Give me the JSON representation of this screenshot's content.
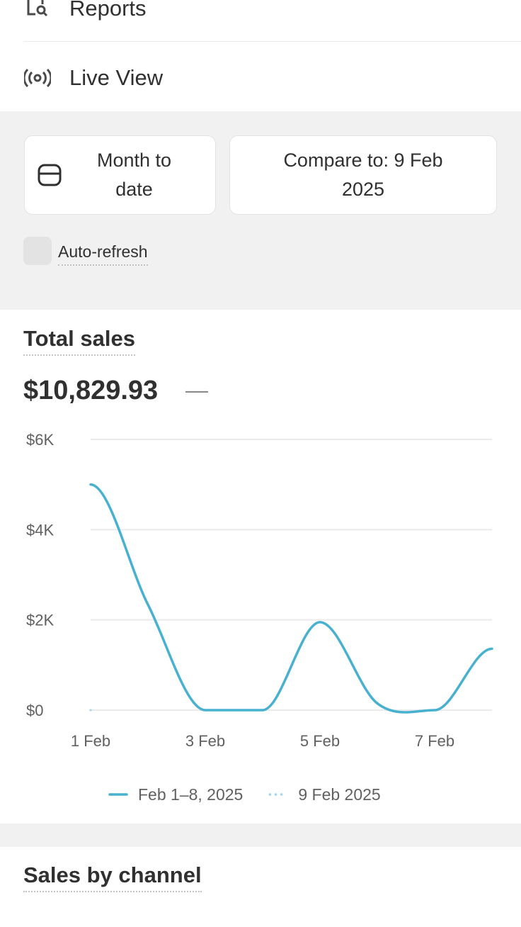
{
  "nav": {
    "items": [
      "Reports",
      "Live View"
    ]
  },
  "filters": {
    "date_range": "Month to date",
    "compare": "Compare to: 9 Feb 2025",
    "auto_refresh": "Auto-refresh"
  },
  "total_sales": {
    "title": "Total sales",
    "value": "$10,829.93",
    "change": "—"
  },
  "chart_data": {
    "type": "line",
    "categories": [
      "1 Feb",
      null,
      "3 Feb",
      null,
      "5 Feb",
      null,
      "7 Feb",
      null
    ],
    "series": [
      {
        "name": "Feb 1–8, 2025",
        "color": "#47b1cf",
        "style": "solid",
        "values": [
          5000,
          2340,
          0,
          0,
          1950,
          150,
          0,
          1360
        ]
      },
      {
        "name": "9 Feb 2025",
        "color": "#9fd6e5",
        "style": "dotted",
        "values": [
          0,
          null,
          null,
          null,
          null,
          null,
          null,
          null
        ]
      }
    ],
    "ylim": [
      0,
      6000
    ],
    "yticks": [
      {
        "value": 0,
        "label": "$0"
      },
      {
        "value": 2000,
        "label": "$2K"
      },
      {
        "value": 4000,
        "label": "$4K"
      },
      {
        "value": 6000,
        "label": "$6K"
      }
    ],
    "grid": true,
    "legend": "bottom"
  },
  "sales_by_channel": {
    "title": "Sales by channel"
  }
}
